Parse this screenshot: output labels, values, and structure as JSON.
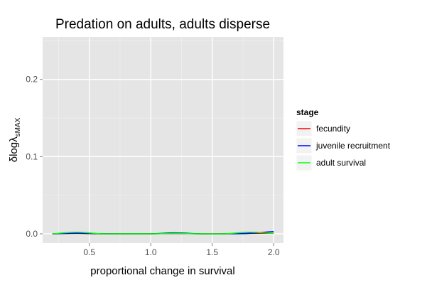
{
  "chart_data": {
    "type": "line",
    "title": "Predation on adults, adults disperse",
    "xlabel": "proportional change in survival",
    "ylabel": "δlogλ",
    "ylabel_subscript": "sMAX",
    "xlim": [
      0.12,
      2.08
    ],
    "ylim": [
      -0.012,
      0.255
    ],
    "x_ticks": [
      0.5,
      1.0,
      1.5,
      2.0
    ],
    "x_tick_labels": [
      "0.5",
      "1.0",
      "1.5",
      "2.0"
    ],
    "y_ticks": [
      0.0,
      0.1,
      0.2
    ],
    "y_tick_labels": [
      "0.0",
      "0.1",
      "0.2"
    ],
    "grid": true,
    "panel_background": "#e5e5e5",
    "legend": {
      "title": "stage",
      "position": "right"
    },
    "series": [
      {
        "name": "fecundity",
        "color": "#ff0000",
        "x": [
          0.2,
          0.4,
          0.6,
          0.8,
          1.0,
          1.2,
          1.4,
          1.6,
          1.8,
          2.0
        ],
        "y": [
          0.0,
          0.0005,
          0.0,
          0.0,
          0.0,
          0.0003,
          0.0,
          0.0,
          0.0005,
          0.0008
        ]
      },
      {
        "name": "juvenile recruitment",
        "color": "#0000ff",
        "x": [
          0.2,
          0.4,
          0.6,
          0.8,
          1.0,
          1.2,
          1.4,
          1.6,
          1.8,
          2.0
        ],
        "y": [
          0.0,
          0.0008,
          0.0,
          0.0,
          0.0,
          0.0012,
          0.0,
          0.0,
          0.0006,
          0.003
        ]
      },
      {
        "name": "adult survival",
        "color": "#00ff00",
        "x": [
          0.2,
          0.4,
          0.6,
          0.8,
          1.0,
          1.2,
          1.4,
          1.6,
          1.8,
          2.0
        ],
        "y": [
          0.0,
          0.002,
          0.0,
          0.0,
          0.0,
          0.0005,
          0.0,
          0.0,
          0.002,
          0.0005
        ]
      }
    ]
  }
}
